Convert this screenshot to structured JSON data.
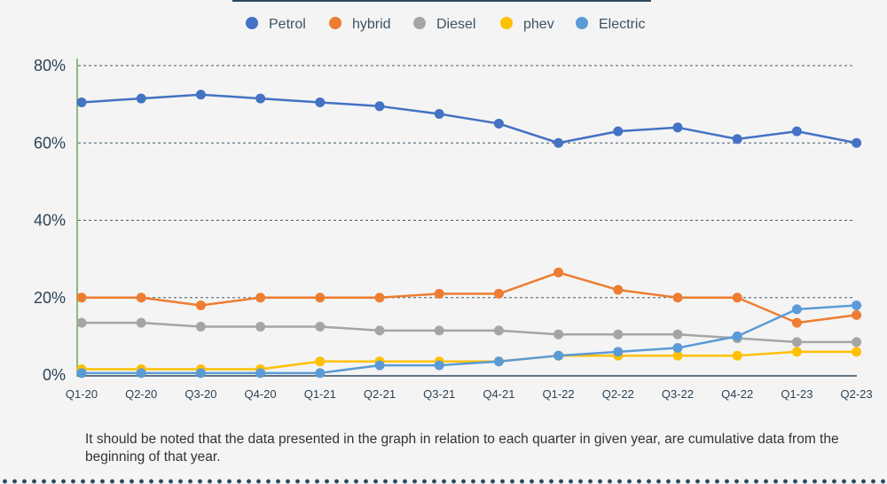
{
  "chart_data": {
    "type": "line",
    "categories": [
      "Q1-20",
      "Q2-20",
      "Q3-20",
      "Q4-20",
      "Q1-21",
      "Q2-21",
      "Q3-21",
      "Q4-21",
      "Q1-22",
      "Q2-22",
      "Q3-22",
      "Q4-22",
      "Q1-23",
      "Q2-23"
    ],
    "series": [
      {
        "name": "Petrol",
        "color": "#4472c4",
        "values": [
          70.5,
          71.5,
          72.5,
          71.5,
          70.5,
          69.5,
          67.5,
          65,
          60,
          63,
          64,
          61,
          63,
          60
        ]
      },
      {
        "name": "hybrid",
        "color": "#ed7d31",
        "values": [
          20,
          20,
          18,
          20,
          20,
          20,
          21,
          21,
          26.5,
          22,
          20,
          20,
          13.5,
          15.5
        ]
      },
      {
        "name": "Diesel",
        "color": "#a5a5a5",
        "values": [
          13.5,
          13.5,
          12.5,
          12.5,
          12.5,
          11.5,
          11.5,
          11.5,
          10.5,
          10.5,
          10.5,
          9.5,
          8.5,
          8.5
        ]
      },
      {
        "name": "phev",
        "color": "#ffc000",
        "values": [
          1.5,
          1.5,
          1.5,
          1.5,
          3.5,
          3.5,
          3.5,
          3.5,
          5,
          5,
          5,
          5,
          6,
          6
        ]
      },
      {
        "name": "Electric",
        "color": "#5b9bd5",
        "values": [
          0.5,
          0.5,
          0.5,
          0.5,
          0.5,
          2.5,
          2.5,
          3.5,
          5,
          6,
          7,
          10,
          17,
          18
        ]
      }
    ],
    "y_ticks": [
      "0%",
      "20%",
      "40%",
      "60%",
      "80%"
    ],
    "ylim": [
      0,
      80
    ],
    "grid": true,
    "legend_position": "top"
  },
  "note": "It should be noted that the data presented in the graph in relation to each quarter in given year, are cumulative data from the beginning of that year."
}
